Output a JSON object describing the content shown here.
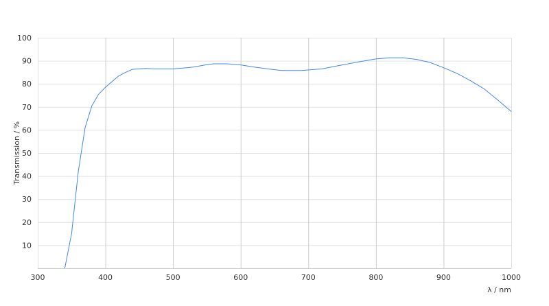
{
  "chart_data": {
    "type": "line",
    "title": "",
    "xlabel": "λ / nm",
    "ylabel": "Transmission / %",
    "xlim": [
      300,
      1000
    ],
    "ylim": [
      0,
      100
    ],
    "xticks": [
      300,
      400,
      500,
      600,
      700,
      800,
      900,
      1000
    ],
    "yticks": [
      10,
      20,
      30,
      40,
      50,
      60,
      70,
      80,
      90,
      100
    ],
    "grid": true,
    "legend": "none",
    "series": [
      {
        "color": "#4285f4",
        "x": [
          340,
          350,
          360,
          370,
          380,
          390,
          400,
          410,
          420,
          430,
          440,
          450,
          460,
          470,
          500,
          520,
          530,
          550,
          560,
          580,
          600,
          620,
          640,
          660,
          690,
          720,
          750,
          780,
          800,
          820,
          840,
          860,
          880,
          900,
          920,
          940,
          960,
          980,
          1000
        ],
        "y": [
          0,
          15,
          42,
          61,
          70.5,
          75.5,
          78.5,
          81,
          83.5,
          85,
          86.3,
          86.5,
          86.7,
          86.5,
          86.5,
          87,
          87.3,
          88.3,
          88.7,
          88.7,
          88.2,
          87.3,
          86.5,
          85.8,
          85.8,
          86.5,
          88.2,
          89.8,
          90.8,
          91.3,
          91.3,
          90.6,
          89.3,
          87,
          84.5,
          81.3,
          77.8,
          73,
          68
        ]
      }
    ]
  }
}
